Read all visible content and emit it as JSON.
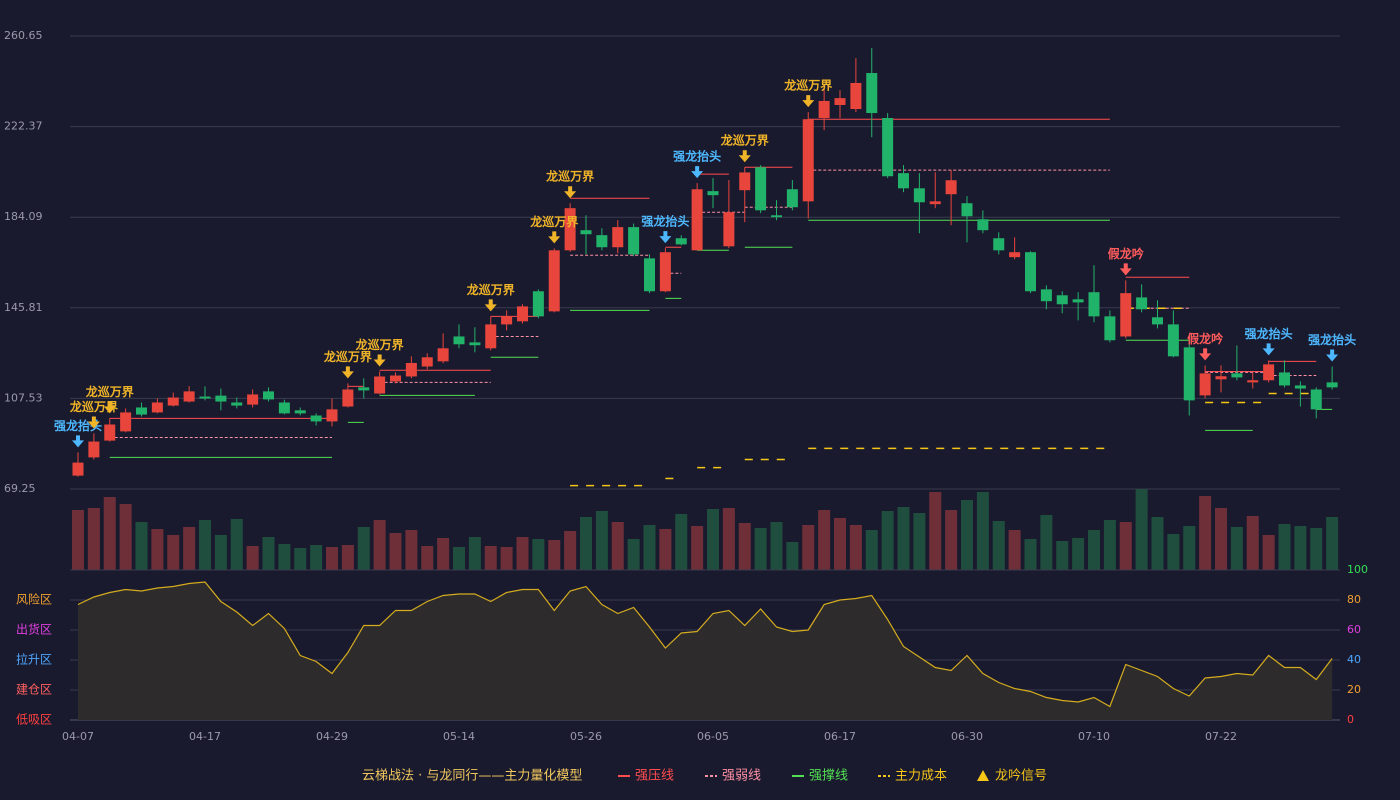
{
  "chart_data": [
    {
      "type": "candlestick",
      "categories": [
        "04-07",
        null,
        null,
        null,
        null,
        null,
        null,
        null,
        "04-17",
        null,
        null,
        null,
        null,
        null,
        null,
        null,
        "04-29",
        null,
        null,
        null,
        null,
        null,
        null,
        null,
        "05-14",
        null,
        null,
        null,
        null,
        null,
        null,
        null,
        "05-26",
        null,
        null,
        null,
        null,
        null,
        null,
        null,
        "06-05",
        null,
        null,
        null,
        null,
        null,
        null,
        null,
        "06-17",
        null,
        null,
        null,
        null,
        null,
        null,
        null,
        "06-30",
        null,
        null,
        null,
        null,
        null,
        null,
        null,
        "07-10",
        null,
        null,
        null,
        null,
        null,
        null,
        null,
        "07-22",
        null,
        null,
        null,
        null,
        null,
        null,
        null
      ],
      "open": [
        74.9,
        82.6,
        89.7,
        93.6,
        103.7,
        101.6,
        104.5,
        106.2,
        108.3,
        108.7,
        105.8,
        104.9,
        110.5,
        105.8,
        102.5,
        100.3,
        97.8,
        104.1,
        112.2,
        109.6,
        114.7,
        116.8,
        121.0,
        123.2,
        133.7,
        131.2,
        128.7,
        138.8,
        140.1,
        152.8,
        144.3,
        170.1,
        178.6,
        176.5,
        171.4,
        179.9,
        166.7,
        152.8,
        175.2,
        170.1,
        195.1,
        171.8,
        195.5,
        205.2,
        184.9,
        195.9,
        190.8,
        226.0,
        231.5,
        229.8,
        245.0,
        226.0,
        202.7,
        196.3,
        189.6,
        193.8,
        190.0,
        183.2,
        175.2,
        167.2,
        169.3,
        153.6,
        151.1,
        149.4,
        152.4,
        142.2,
        133.7,
        150.2,
        141.8,
        138.8,
        129.1,
        108.8,
        115.6,
        118.1,
        114.3,
        115.2,
        118.5,
        113.0,
        111.3,
        114.3
      ],
      "high": [
        84.7,
        92.7,
        99.1,
        103.3,
        105.8,
        107.5,
        110.0,
        112.7,
        112.6,
        111.7,
        107.9,
        111.3,
        112.2,
        107.0,
        103.7,
        101.2,
        107.5,
        113.9,
        116.0,
        118.9,
        118.5,
        125.3,
        126.6,
        135.0,
        138.8,
        137.6,
        142.2,
        144.7,
        147.3,
        153.6,
        170.9,
        190.0,
        184.9,
        179.4,
        182.8,
        181.4,
        168.4,
        171.0,
        176.5,
        198.5,
        200.6,
        199.8,
        205.2,
        206.1,
        191.3,
        199.8,
        228.5,
        238.6,
        237.8,
        251.3,
        255.6,
        228.1,
        206.1,
        202.7,
        203.1,
        204.0,
        193.0,
        187.0,
        177.7,
        175.6,
        169.7,
        155.3,
        152.8,
        152.4,
        163.8,
        144.7,
        157.4,
        155.7,
        149.0,
        144.7,
        132.1,
        121.5,
        121.5,
        129.9,
        118.5,
        123.6,
        123.6,
        114.7,
        112.2,
        121.0
      ],
      "low": [
        74.5,
        81.7,
        89.3,
        93.2,
        99.9,
        101.2,
        104.1,
        105.8,
        106.7,
        102.5,
        103.3,
        103.7,
        106.2,
        100.8,
        100.4,
        96.1,
        95.7,
        103.7,
        107.5,
        109.2,
        113.9,
        116.0,
        119.8,
        122.4,
        128.7,
        127.0,
        127.8,
        136.3,
        139.2,
        141.4,
        143.9,
        169.5,
        168.4,
        170.1,
        168.8,
        167.6,
        152.0,
        152.4,
        172.2,
        170.0,
        187.9,
        171.0,
        182.0,
        185.8,
        182.8,
        187.0,
        183.6,
        220.9,
        226.0,
        228.5,
        217.9,
        200.6,
        194.7,
        177.3,
        187.9,
        180.7,
        173.5,
        177.3,
        168.4,
        166.3,
        152.0,
        145.2,
        143.5,
        140.5,
        139.7,
        131.2,
        132.9,
        143.9,
        137.1,
        124.9,
        100.3,
        107.5,
        110.1,
        115.2,
        111.7,
        114.3,
        112.2,
        104.1,
        99.1,
        111.3
      ],
      "close": [
        80.4,
        89.3,
        96.5,
        101.6,
        100.7,
        105.8,
        107.9,
        110.5,
        107.5,
        106.2,
        104.5,
        109.2,
        107.1,
        101.2,
        101.2,
        97.8,
        102.9,
        111.3,
        110.9,
        116.8,
        117.2,
        122.5,
        124.9,
        128.7,
        130.4,
        130.0,
        138.8,
        142.2,
        146.4,
        142.2,
        170.1,
        187.9,
        176.9,
        171.4,
        179.9,
        168.4,
        152.8,
        169.3,
        172.6,
        195.9,
        193.4,
        186.2,
        203.0,
        187.0,
        184.1,
        188.3,
        225.5,
        233.2,
        234.4,
        240.8,
        228.1,
        201.4,
        196.3,
        190.4,
        190.8,
        199.7,
        184.5,
        178.6,
        170.1,
        169.3,
        152.8,
        148.6,
        147.3,
        148.1,
        142.2,
        132.1,
        152.0,
        145.2,
        138.8,
        125.3,
        106.7,
        118.1,
        116.9,
        116.4,
        115.2,
        121.9,
        113.0,
        111.7,
        102.9,
        112.2
      ],
      "up_color": "#e8453c",
      "down_color": "#22b36a",
      "ylim": [
        69.25,
        260.65
      ],
      "yticks": [
        69.25,
        107.53,
        145.81,
        184.09,
        222.37,
        260.65
      ],
      "grid": true,
      "legend_title": "云梯战法 · 与龙同行——主力量化模型",
      "levels": [
        {
          "name": "强压线",
          "color": "#ff4d4f",
          "dash": false,
          "segments": [
            {
              "from": 2,
              "to": 16,
              "value": 99.1
            },
            {
              "from": 17,
              "to": 18,
              "value": 112.6
            },
            {
              "from": 19,
              "to": 26,
              "value": 119.4
            },
            {
              "from": 26,
              "to": 29,
              "value": 142.2
            },
            {
              "from": 31,
              "to": 36,
              "value": 192.1
            },
            {
              "from": 37,
              "to": 38,
              "value": 171.4
            },
            {
              "from": 39,
              "to": 41,
              "value": 202.3
            },
            {
              "from": 42,
              "to": 45,
              "value": 205.2
            },
            {
              "from": 46,
              "to": 65,
              "value": 225.5
            },
            {
              "from": 66,
              "to": 70,
              "value": 158.7
            },
            {
              "from": 71,
              "to": 75,
              "value": 118.9
            },
            {
              "from": 75,
              "to": 78,
              "value": 123.2
            }
          ]
        },
        {
          "name": "强弱线",
          "color": "#ff8fa3",
          "dash": true,
          "segments": [
            {
              "from": 2,
              "to": 16,
              "value": 91.0
            },
            {
              "from": 19,
              "to": 26,
              "value": 114.3
            },
            {
              "from": 26,
              "to": 29,
              "value": 133.7
            },
            {
              "from": 31,
              "to": 36,
              "value": 168.0
            },
            {
              "from": 37,
              "to": 38,
              "value": 160.4
            },
            {
              "from": 39,
              "to": 42,
              "value": 186.2
            },
            {
              "from": 42,
              "to": 45,
              "value": 188.3
            },
            {
              "from": 46,
              "to": 65,
              "value": 204.0
            },
            {
              "from": 66,
              "to": 70,
              "value": 145.6
            },
            {
              "from": 71,
              "to": 75,
              "value": 118.5
            },
            {
              "from": 75,
              "to": 78,
              "value": 117.2
            }
          ]
        },
        {
          "name": "强撑线",
          "color": "#52e052",
          "dash": false,
          "segments": [
            {
              "from": 2,
              "to": 16,
              "value": 82.6
            },
            {
              "from": 17,
              "to": 18,
              "value": 97.4
            },
            {
              "from": 19,
              "to": 25,
              "value": 108.8
            },
            {
              "from": 26,
              "to": 29,
              "value": 124.9
            },
            {
              "from": 31,
              "to": 36,
              "value": 144.7
            },
            {
              "from": 37,
              "to": 38,
              "value": 149.8
            },
            {
              "from": 39,
              "to": 41,
              "value": 170.1
            },
            {
              "from": 42,
              "to": 45,
              "value": 171.4
            },
            {
              "from": 46,
              "to": 65,
              "value": 182.8
            },
            {
              "from": 66,
              "to": 70,
              "value": 132.1
            },
            {
              "from": 71,
              "to": 74,
              "value": 94.0
            },
            {
              "from": 78,
              "to": 79,
              "value": 102.9
            }
          ]
        },
        {
          "name": "主力成本",
          "color": "#f5c518",
          "dash": true,
          "segments": [
            {
              "from": 31,
              "to": 36,
              "value": 70.7
            },
            {
              "from": 37,
              "to": 38,
              "value": 73.7
            },
            {
              "from": 39,
              "to": 41,
              "value": 78.3
            },
            {
              "from": 42,
              "to": 45,
              "value": 81.7
            },
            {
              "from": 46,
              "to": 65,
              "value": 86.4
            },
            {
              "from": 66,
              "to": 70,
              "value": 145.6
            },
            {
              "from": 71,
              "to": 75,
              "value": 105.8
            },
            {
              "from": 75,
              "to": 78,
              "value": 109.6
            }
          ]
        }
      ],
      "signal_name": "龙吟信号",
      "signal_color": "#f5c518",
      "signals": [
        {
          "index": 0,
          "label": "强龙抬头",
          "color": "#4db8ff"
        },
        {
          "index": 1,
          "label": "龙巡万界",
          "color": "#f0b429"
        },
        {
          "index": 2,
          "label": "龙巡万界",
          "color": "#f0b429"
        },
        {
          "index": 17,
          "label": "龙巡万界",
          "color": "#f0b429"
        },
        {
          "index": 19,
          "label": "龙巡万界",
          "color": "#f0b429"
        },
        {
          "index": 26,
          "label": "龙巡万界",
          "color": "#f0b429"
        },
        {
          "index": 30,
          "label": "龙巡万界",
          "color": "#f0b429"
        },
        {
          "index": 31,
          "label": "龙巡万界",
          "color": "#f0b429"
        },
        {
          "index": 37,
          "label": "强龙抬头",
          "color": "#4db8ff"
        },
        {
          "index": 39,
          "label": "强龙抬头",
          "color": "#4db8ff"
        },
        {
          "index": 42,
          "label": "龙巡万界",
          "color": "#f0b429"
        },
        {
          "index": 46,
          "label": "龙巡万界",
          "color": "#f0b429"
        },
        {
          "index": 66,
          "label": "假龙吟",
          "color": "#ff5c5c"
        },
        {
          "index": 71,
          "label": "假龙吟",
          "color": "#ff5c5c"
        },
        {
          "index": 75,
          "label": "强龙抬头",
          "color": "#4db8ff"
        },
        {
          "index": 79,
          "label": "强龙抬头",
          "color": "#4db8ff"
        }
      ]
    },
    {
      "type": "bar",
      "values": [
        60,
        62,
        73,
        66,
        48,
        41,
        35,
        43,
        50,
        35,
        51,
        24,
        33,
        26,
        22,
        25,
        23,
        25,
        43,
        50,
        37,
        40,
        24,
        32,
        23,
        33,
        24,
        23,
        33,
        31,
        30,
        39,
        53,
        59,
        48,
        31,
        45,
        41,
        56,
        44,
        61,
        62,
        47,
        42,
        48,
        28,
        45,
        60,
        52,
        45,
        40,
        59,
        63,
        57,
        78,
        60,
        70,
        78,
        49,
        40,
        31,
        55,
        29,
        32,
        40,
        50,
        48,
        81,
        53,
        36,
        44,
        74,
        62,
        43,
        54,
        35,
        46,
        44,
        42,
        53
      ],
      "up_color": "#6e2f38",
      "down_color": "#1f4e3e",
      "ylim": [
        0,
        81
      ]
    },
    {
      "type": "area",
      "values": [
        77,
        82,
        85,
        87,
        86,
        88,
        89,
        91,
        92,
        79,
        72,
        63,
        71,
        61,
        43,
        39,
        31,
        45,
        63,
        63,
        73,
        73,
        79,
        83,
        84,
        84,
        79,
        85,
        87,
        87,
        73,
        86,
        89,
        77,
        71,
        75,
        62,
        48,
        58,
        59,
        71,
        73,
        63,
        74,
        62,
        59,
        60,
        77,
        80,
        81,
        83,
        67,
        49,
        42,
        35,
        33,
        43,
        31,
        25,
        21,
        19,
        15,
        13,
        12,
        15,
        9,
        37,
        33,
        29,
        21,
        16,
        28,
        29,
        31,
        30,
        43,
        35,
        35,
        27,
        41
      ],
      "color": "#d4ac1e",
      "fill": "#2e2b2c",
      "ylim": [
        0,
        100
      ],
      "yticks": [
        0,
        20,
        40,
        60,
        80,
        100
      ],
      "ytick_colors": [
        "#ff4040",
        "#f0a030",
        "#4da6ff",
        "#e040e0",
        "#f0a030",
        "#33dd55"
      ],
      "zones": [
        {
          "value": 80,
          "label": "风险区",
          "color": "#f0a030"
        },
        {
          "value": 60,
          "label": "出货区",
          "color": "#e040e0"
        },
        {
          "value": 40,
          "label": "拉升区",
          "color": "#4da6ff"
        },
        {
          "value": 20,
          "label": "建仓区",
          "color": "#ff6060"
        },
        {
          "value": 0,
          "label": "低吸区",
          "color": "#ff4040"
        }
      ]
    }
  ]
}
